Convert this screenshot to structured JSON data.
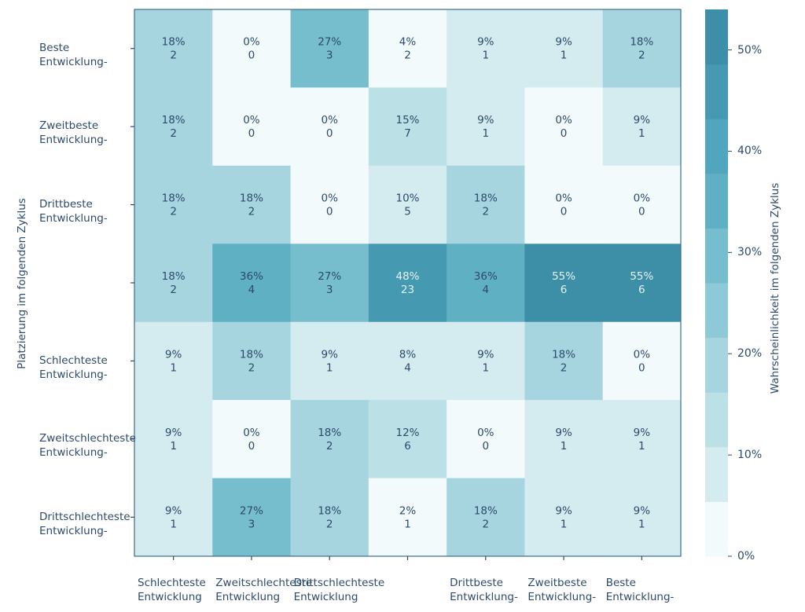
{
  "chart_data": {
    "type": "heatmap",
    "ylabel": "Platzierung im folgenden Zyklus",
    "colorbar_label": "Wahrscheinlichkeit im folgenden Zyklus",
    "colorbar_ticks": [
      "0%",
      "10%",
      "20%",
      "30%",
      "40%",
      "50%"
    ],
    "colorbar_range": [
      0,
      0.54
    ],
    "x_categories": [
      [
        "Schlechteste",
        "Entwicklung"
      ],
      [
        "Zweitschlechteste",
        "Entwicklung"
      ],
      [
        "Drittschlechteste",
        "Entwicklung"
      ],
      [
        "",
        ""
      ],
      [
        "Drittbeste",
        "Entwicklung-"
      ],
      [
        "Zweitbeste",
        "Entwicklung-"
      ],
      [
        "Beste",
        "Entwicklung-"
      ]
    ],
    "y_categories": [
      [
        "Beste",
        "Entwicklung-"
      ],
      [
        "Zweitbeste",
        "Entwicklung-"
      ],
      [
        "Drittbeste",
        "Entwicklung-"
      ],
      [
        "",
        ""
      ],
      [
        "Schlechteste",
        "Entwicklung-"
      ],
      [
        "Zweitschlechteste",
        "Entwicklung-"
      ],
      [
        "Drittschlechteste",
        "Entwicklung-"
      ]
    ],
    "percent_labels": [
      [
        "18%",
        "0%",
        "27%",
        "4%",
        "9%",
        "9%",
        "18%"
      ],
      [
        "18%",
        "0%",
        "0%",
        "15%",
        "9%",
        "0%",
        "9%"
      ],
      [
        "18%",
        "18%",
        "0%",
        "10%",
        "18%",
        "0%",
        "0%"
      ],
      [
        "18%",
        "36%",
        "27%",
        "48%",
        "36%",
        "55%",
        "55%"
      ],
      [
        "9%",
        "18%",
        "9%",
        "8%",
        "9%",
        "18%",
        "0%"
      ],
      [
        "9%",
        "0%",
        "18%",
        "12%",
        "0%",
        "9%",
        "9%"
      ],
      [
        "9%",
        "27%",
        "18%",
        "2%",
        "18%",
        "9%",
        "9%"
      ]
    ],
    "counts": [
      [
        2,
        0,
        3,
        2,
        1,
        1,
        2
      ],
      [
        2,
        0,
        0,
        7,
        1,
        0,
        1
      ],
      [
        2,
        2,
        0,
        5,
        2,
        0,
        0
      ],
      [
        2,
        4,
        3,
        23,
        4,
        6,
        6
      ],
      [
        1,
        2,
        1,
        4,
        1,
        2,
        0
      ],
      [
        1,
        0,
        2,
        6,
        0,
        1,
        1
      ],
      [
        1,
        3,
        2,
        1,
        2,
        1,
        1
      ]
    ],
    "values": [
      [
        0.18,
        0.0,
        0.27,
        0.04,
        0.09,
        0.09,
        0.18
      ],
      [
        0.18,
        0.0,
        0.0,
        0.15,
        0.09,
        0.0,
        0.09
      ],
      [
        0.18,
        0.18,
        0.0,
        0.1,
        0.18,
        0.0,
        0.0
      ],
      [
        0.18,
        0.36,
        0.27,
        0.48,
        0.36,
        0.55,
        0.55
      ],
      [
        0.09,
        0.18,
        0.09,
        0.08,
        0.09,
        0.18,
        0.0
      ],
      [
        0.09,
        0.0,
        0.18,
        0.12,
        0.0,
        0.09,
        0.09
      ],
      [
        0.09,
        0.27,
        0.18,
        0.02,
        0.18,
        0.09,
        0.09
      ]
    ],
    "color_steps": [
      "#f3fafc",
      "#d4ebef",
      "#bbe0e6",
      "#a6d5df",
      "#8dc9d6",
      "#76bdcd",
      "#5fb0c3",
      "#50a6bc",
      "#4599b1",
      "#3d8ea7"
    ],
    "grid": false
  }
}
